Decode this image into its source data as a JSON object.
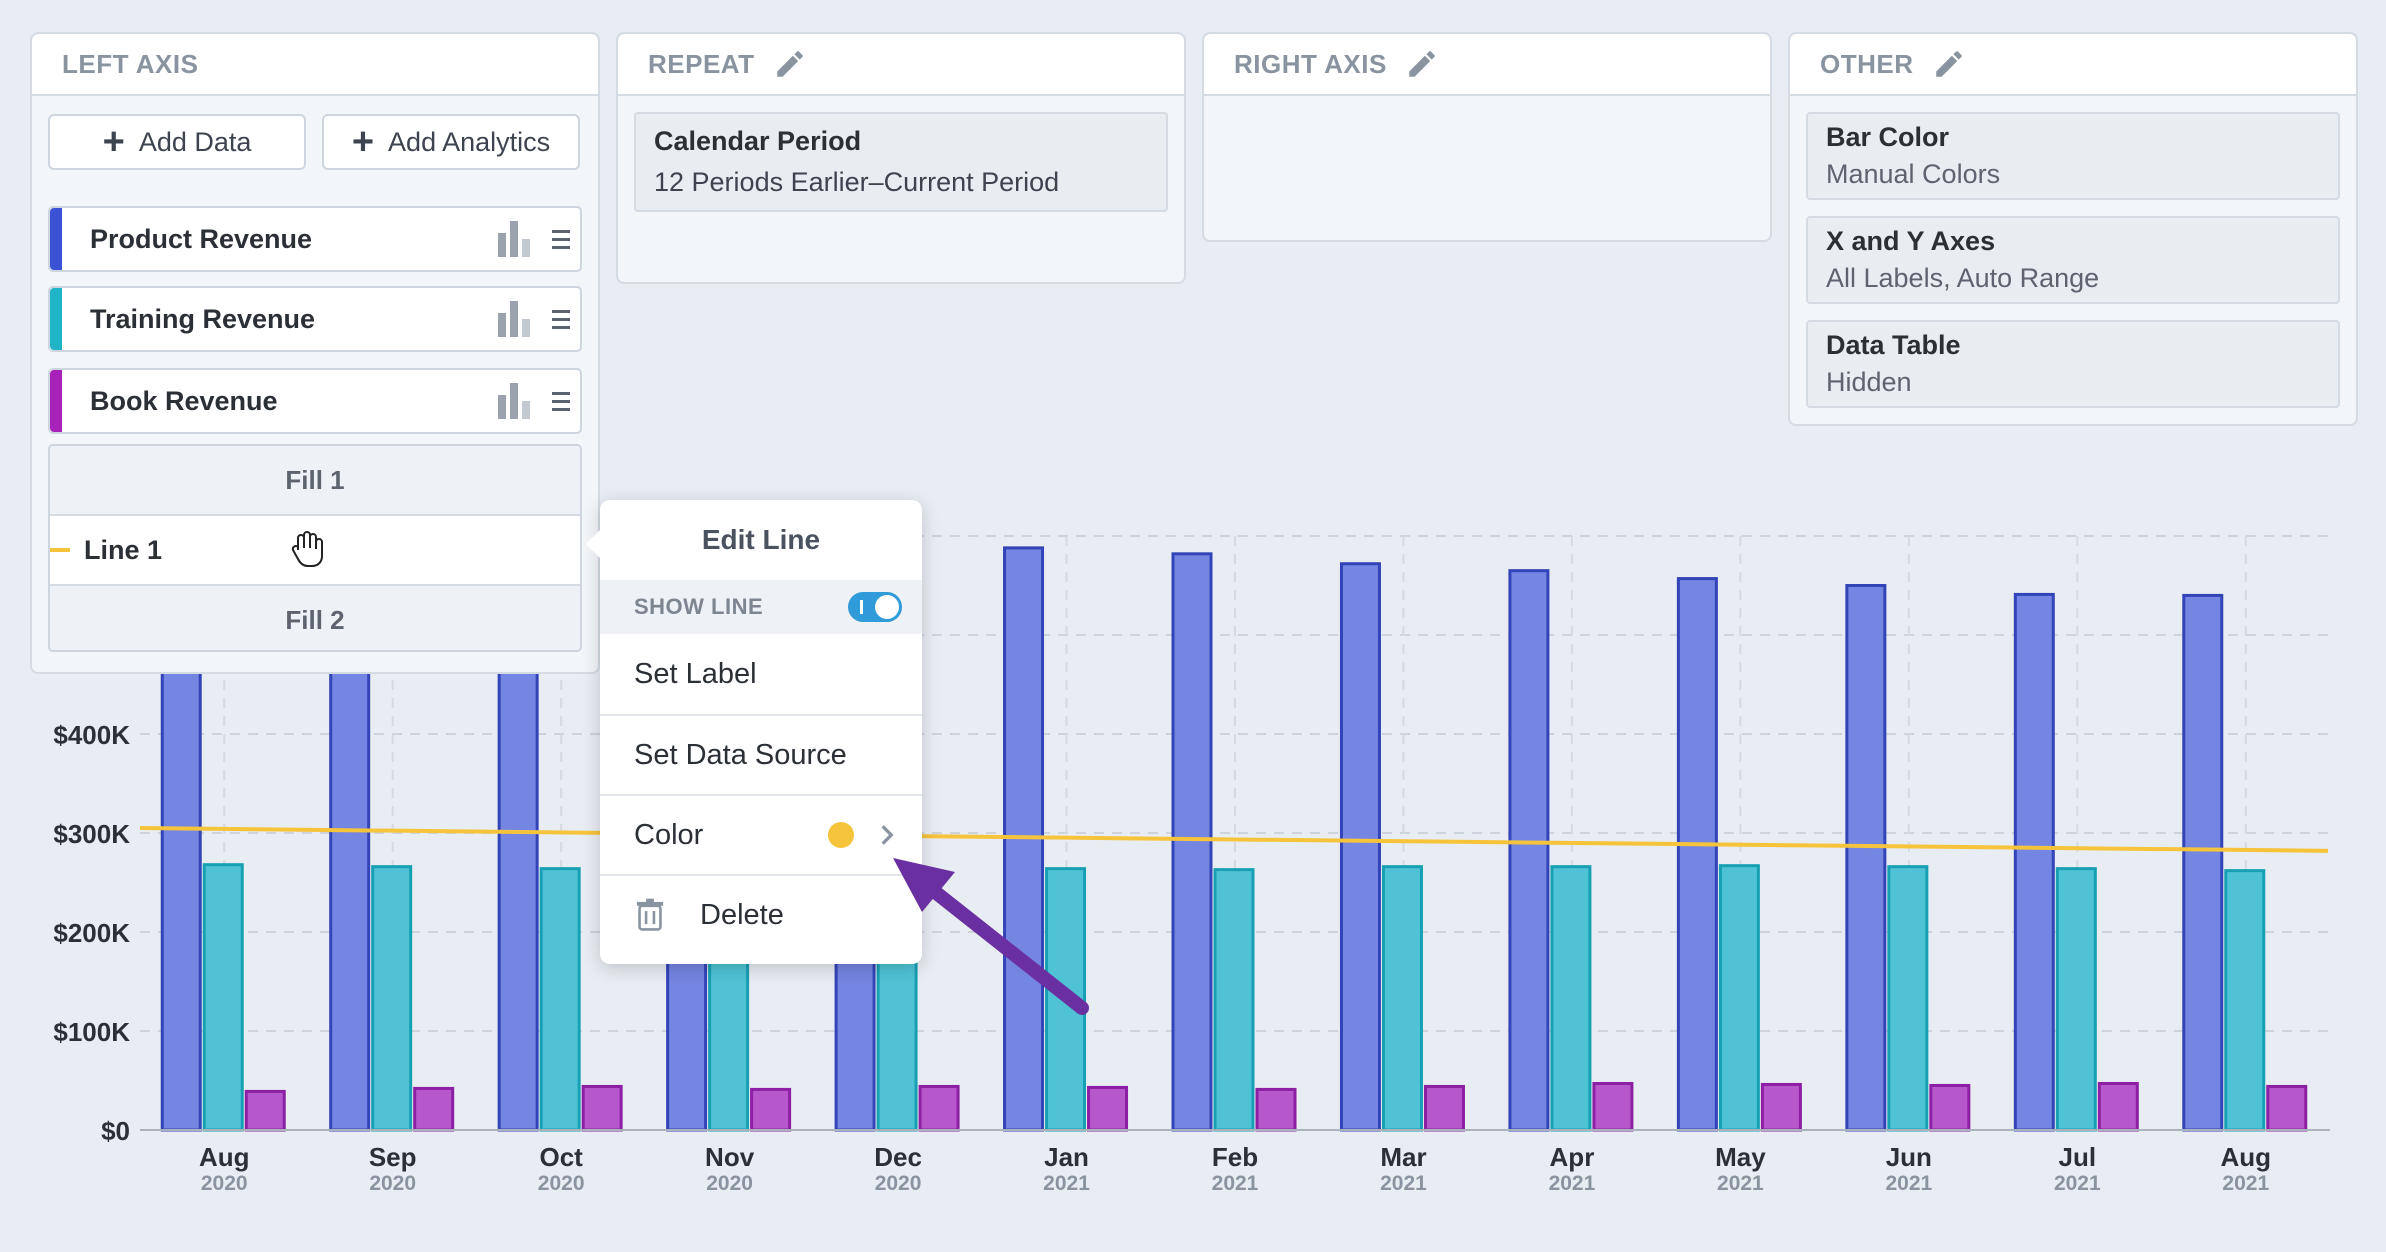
{
  "panels": {
    "left_axis": {
      "title": "LEFT AXIS",
      "add_data": "Add Data",
      "add_analytics": "Add Analytics",
      "series": [
        {
          "label": "Product Revenue",
          "color": "#3b52d4"
        },
        {
          "label": "Training Revenue",
          "color": "#1fb5c7"
        },
        {
          "label": "Book Revenue",
          "color": "#a722b8"
        }
      ],
      "fill1": "Fill 1",
      "line1": "Line 1",
      "fill2": "Fill 2"
    },
    "repeat": {
      "title": "REPEAT",
      "card_title": "Calendar Period",
      "card_sub": "12 Periods Earlier–Current Period"
    },
    "right_axis": {
      "title": "RIGHT AXIS"
    },
    "other": {
      "title": "OTHER",
      "cards": [
        {
          "title": "Bar Color",
          "sub": "Manual Colors"
        },
        {
          "title": "X and Y Axes",
          "sub": "All Labels, Auto Range"
        },
        {
          "title": "Data Table",
          "sub": "Hidden"
        }
      ]
    }
  },
  "popup": {
    "title": "Edit Line",
    "show_line": "SHOW LINE",
    "set_label": "Set Label",
    "set_data_source": "Set Data Source",
    "color": "Color",
    "delete": "Delete",
    "line_color": "#f6c43a"
  },
  "chart_data": {
    "type": "bar",
    "categories": [
      "Aug",
      "Sep",
      "Oct",
      "Nov",
      "Dec",
      "Jan",
      "Feb",
      "Mar",
      "Apr",
      "May",
      "Jun",
      "Jul",
      "Aug"
    ],
    "years": [
      "2020",
      "2020",
      "2020",
      "2020",
      "2020",
      "2021",
      "2021",
      "2021",
      "2021",
      "2021",
      "2021",
      "2021",
      "2021"
    ],
    "yticks": [
      "$0",
      "$100K",
      "$200K",
      "$300K",
      "$400K"
    ],
    "ylim": [
      0,
      620000
    ],
    "series": [
      {
        "name": "Product Revenue",
        "color": "#7585e2",
        "stroke": "#3344b8",
        "values": [
          580000,
          580000,
          580000,
          560000,
          570000,
          588000,
          582000,
          572000,
          565000,
          557000,
          550000,
          541000,
          540000
        ]
      },
      {
        "name": "Training Revenue",
        "color": "#4fc3d5",
        "stroke": "#17a0b3",
        "values": [
          268000,
          266000,
          264000,
          262000,
          263000,
          264000,
          263000,
          266000,
          266000,
          267000,
          266000,
          264000,
          262000
        ]
      },
      {
        "name": "Book Revenue",
        "color": "#b657cc",
        "stroke": "#8c1fa3",
        "values": [
          39000,
          42000,
          44000,
          41000,
          44000,
          43000,
          41000,
          44000,
          47000,
          46000,
          45000,
          47000,
          44000
        ]
      }
    ],
    "trend_line": {
      "start": 305000,
      "end": 282000,
      "color": "#f6c43a"
    }
  }
}
